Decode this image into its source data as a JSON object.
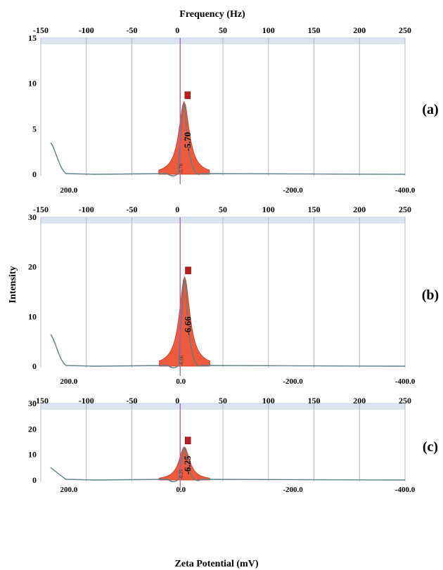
{
  "figure": {
    "top_title": "Frequency (Hz)",
    "bottom_title": "Zeta Potential (mV)",
    "y_title": "Intensity"
  },
  "chart_data": [
    {
      "type": "area",
      "panel_label": "(a)",
      "top_axis": {
        "label": "Frequency (Hz)",
        "range": [
          -150,
          250
        ],
        "ticks": [
          -150,
          -100,
          -50,
          0,
          50,
          100,
          150,
          200,
          250
        ]
      },
      "bottom_axis": {
        "label": "",
        "range": [
          250,
          -400
        ],
        "reversed": true,
        "ticks": [
          200,
          -200,
          -400
        ],
        "tick_labels": [
          "200.0",
          "-200.0",
          "-400.0"
        ]
      },
      "ylim": [
        0,
        15
      ],
      "yticks": [
        0,
        5,
        10,
        15
      ],
      "peak": {
        "zeta_mV": -5.7,
        "intensity": 8.0,
        "label": "-5.70",
        "sublabel": "-5.70"
      },
      "grid": true
    },
    {
      "type": "area",
      "panel_label": "(b)",
      "top_axis": {
        "label": "",
        "range": [
          -150,
          250
        ],
        "ticks": [
          -150,
          -100,
          -50,
          0,
          50,
          100,
          150,
          200,
          250
        ]
      },
      "bottom_axis": {
        "label": "",
        "range": [
          250,
          -400
        ],
        "reversed": true,
        "ticks": [
          200,
          0,
          -200,
          -400
        ],
        "tick_labels": [
          "200.0",
          "0.0",
          "-200.0",
          "-400.0"
        ]
      },
      "ylim": [
        0,
        30
      ],
      "yticks": [
        0,
        10,
        20,
        30
      ],
      "peak": {
        "zeta_mV": -6.66,
        "intensity": 18.0,
        "label": "-6.66",
        "sublabel": "-6.66"
      },
      "grid": true
    },
    {
      "type": "area",
      "panel_label": "(c)",
      "top_axis": {
        "label": "",
        "range": [
          -150,
          250
        ],
        "ticks": [
          -150,
          -100,
          -50,
          0,
          50,
          100,
          150,
          200,
          250
        ]
      },
      "bottom_axis": {
        "label": "Zeta Potential (mV)",
        "range": [
          250,
          -400
        ],
        "reversed": true,
        "ticks": [
          200,
          0,
          -200,
          -400
        ],
        "tick_labels": [
          "200.0",
          "0.0",
          "-200.0",
          "-400.0"
        ]
      },
      "ylim": [
        0,
        30
      ],
      "yticks": [
        0,
        10,
        20,
        30
      ],
      "peak": {
        "zeta_mV": -6.25,
        "intensity": 13.0,
        "label": "-6.25",
        "sublabel": "-6.25"
      },
      "grid": true
    }
  ],
  "colors": {
    "fill": "#f05a3c",
    "fill_stroke": "#c23a22",
    "curve": "#5f7f86",
    "marker": "#b81e1e",
    "center_line": "#b05ab0",
    "grid": "#b4b8bc",
    "band": "#dde4f1"
  }
}
